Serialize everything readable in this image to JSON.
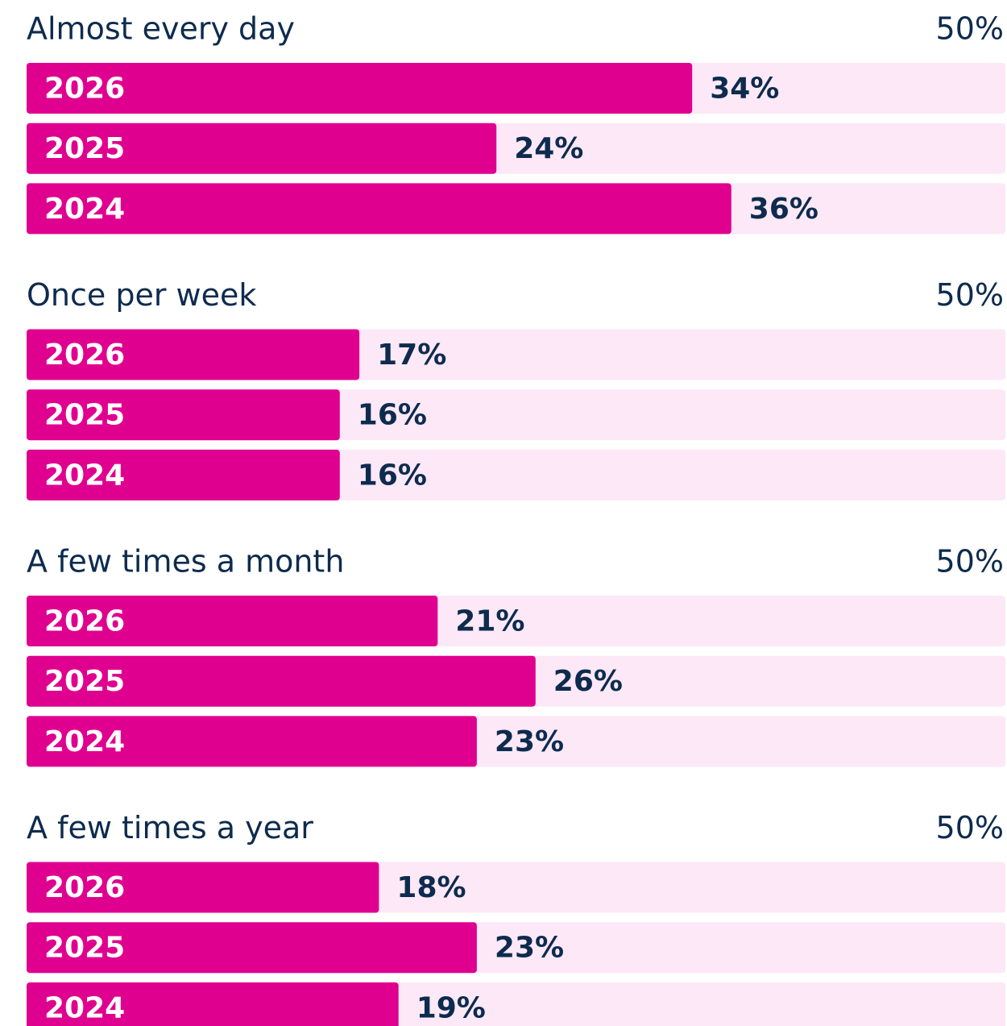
{
  "chart_data": [
    {
      "type": "bar",
      "title": "Almost every day",
      "categories": [
        "2026",
        "2025",
        "2024"
      ],
      "values": [
        34,
        24,
        36
      ],
      "value_labels": [
        "34%",
        "24%",
        "36%"
      ],
      "color": "#e0008f",
      "xlim": [
        0,
        50
      ],
      "xticks": [
        {
          "value": 50,
          "label": "50%"
        }
      ]
    },
    {
      "type": "bar",
      "title": "Once per week",
      "categories": [
        "2026",
        "2025",
        "2024"
      ],
      "values": [
        17,
        16,
        16
      ],
      "value_labels": [
        "17%",
        "16%",
        "16%"
      ],
      "color": "#e0008f",
      "xlim": [
        0,
        50
      ],
      "xticks": [
        {
          "value": 50,
          "label": "50%"
        }
      ]
    },
    {
      "type": "bar",
      "title": "A few times a month",
      "categories": [
        "2026",
        "2025",
        "2024"
      ],
      "values": [
        21,
        26,
        23
      ],
      "value_labels": [
        "21%",
        "26%",
        "23%"
      ],
      "color": "#e0008f",
      "xlim": [
        0,
        50
      ],
      "xticks": [
        {
          "value": 50,
          "label": "50%"
        }
      ]
    },
    {
      "type": "bar",
      "title": "A few times a year",
      "categories": [
        "2026",
        "2025",
        "2024"
      ],
      "values": [
        18,
        23,
        19
      ],
      "value_labels": [
        "18%",
        "23%",
        "19%"
      ],
      "color": "#e0008f",
      "xlim": [
        0,
        50
      ],
      "xticks": [
        {
          "value": 50,
          "label": "50%"
        }
      ]
    }
  ]
}
